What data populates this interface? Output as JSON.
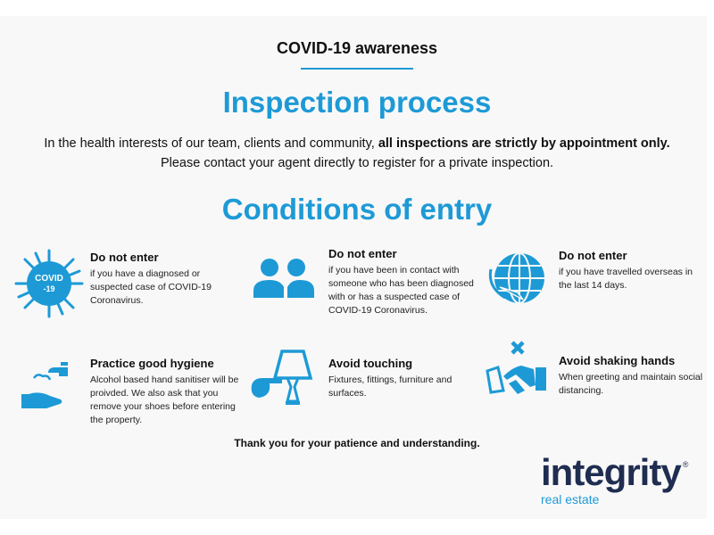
{
  "kicker": "COVID-19 awareness",
  "heading": "Inspection process",
  "intro": {
    "part1": "In the health interests of our team, clients and community, ",
    "bold": "all inspections are strictly by appointment only.",
    "part2": " Please contact your agent directly to register for a private inspection."
  },
  "conditions_heading": "Conditions of entry",
  "items": [
    {
      "title": "Do not enter",
      "text": "if you have a diagnosed or suspected case of COVID-19 Coronavirus.",
      "icon": "covid-virus-icon",
      "icon_text": "COVID -19"
    },
    {
      "title": "Do not enter",
      "text": "if you have been in contact with someone who has been diagnosed with or has a suspected case of COVID-19 Coronavirus.",
      "icon": "people-icon"
    },
    {
      "title": "Do not enter",
      "text": "if you have travelled overseas in the last 14 days.",
      "icon": "globe-plane-icon"
    },
    {
      "title": "Practice good hygiene",
      "text": "Alcohol based hand sanitiser will be proivded. We also ask that you remove your shoes before entering the property.",
      "icon": "hand-wash-icon"
    },
    {
      "title": "Avoid touching",
      "text": "Fixtures, fittings, furniture and surfaces.",
      "icon": "lamp-touch-icon"
    },
    {
      "title": "Avoid shaking hands",
      "text": "When greeting and maintain social distancing.",
      "icon": "no-handshake-icon"
    }
  ],
  "thanks": "Thank you for your patience and understanding.",
  "logo": {
    "name": "integrity",
    "sub": "real estate",
    "reg": "®"
  },
  "colors": {
    "accent": "#1d9ad6",
    "logo_navy": "#1f2d50",
    "panel": "#f8f8f8"
  }
}
